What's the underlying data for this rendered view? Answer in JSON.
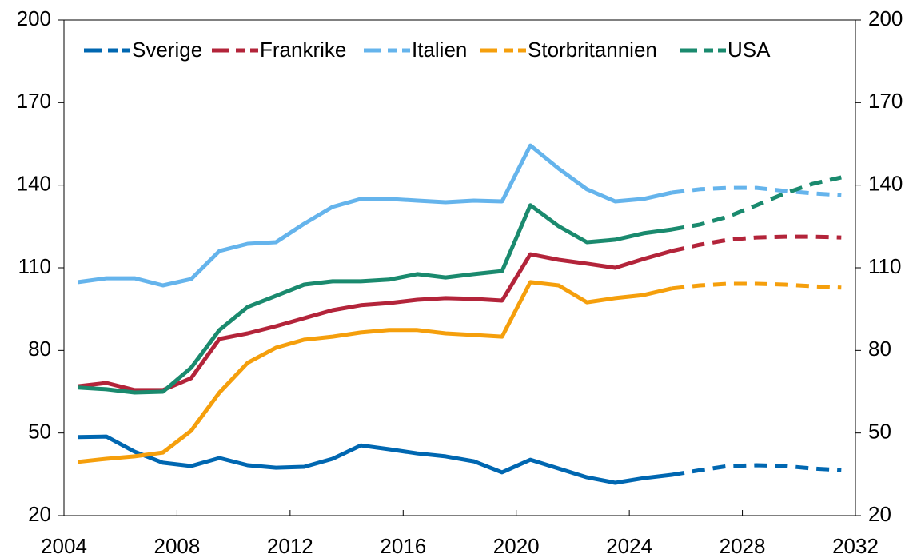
{
  "chart_data": {
    "type": "line",
    "x": [
      2004.5,
      2005.5,
      2006.5,
      2007.5,
      2008.5,
      2009.5,
      2010.5,
      2011.5,
      2012.5,
      2013.5,
      2014.5,
      2015.5,
      2016.5,
      2017.5,
      2018.5,
      2019.5,
      2020.5,
      2021.5,
      2022.5,
      2023.5,
      2024.5,
      2025.5,
      2026.5,
      2027.5,
      2028.5,
      2029.5,
      2030.5,
      2031.5
    ],
    "forecast_start": 2025.5,
    "series": [
      {
        "name": "Sverige",
        "color": "#0067b1",
        "values": [
          48.5,
          48.7,
          43.2,
          39.2,
          38,
          40.9,
          38.3,
          37.4,
          37.7,
          40.6,
          45.5,
          44.1,
          42.6,
          41.5,
          39.7,
          35.7,
          40.3,
          37.1,
          33.9,
          31.9,
          33.6,
          34.8,
          36.5,
          38,
          38.3,
          38,
          37.1,
          36.5
        ]
      },
      {
        "name": "Frankrike",
        "color": "#b3243a",
        "values": [
          67,
          68.2,
          65.6,
          65.6,
          69.9,
          84.2,
          86.2,
          88.8,
          91.7,
          94.6,
          96.4,
          97.2,
          98.4,
          99,
          98.7,
          98.1,
          114.9,
          112.9,
          111.5,
          110,
          113.2,
          116.1,
          118.4,
          120.2,
          121,
          121.3,
          121.3,
          121
        ]
      },
      {
        "name": "Italien",
        "color": "#65b4ec",
        "values": [
          104.8,
          106.2,
          106.2,
          103.6,
          105.9,
          116.1,
          118.7,
          119.3,
          126,
          132.1,
          135,
          135,
          134.4,
          133.8,
          134.4,
          134.1,
          154.4,
          146,
          138.5,
          134.1,
          135,
          137.3,
          138.5,
          139,
          139,
          137.9,
          137,
          136.4
        ]
      },
      {
        "name": "Storbritannien",
        "color": "#f59f0c",
        "values": [
          39.5,
          40.6,
          41.5,
          42.9,
          50.8,
          64.7,
          75.5,
          81,
          83.9,
          85,
          86.5,
          87.4,
          87.4,
          86.2,
          85.6,
          85,
          104.8,
          103.6,
          97.5,
          99,
          100.1,
          102.5,
          103.6,
          104.2,
          104.2,
          103.9,
          103.3,
          102.8
        ]
      },
      {
        "name": "USA",
        "color": "#1a8a6e",
        "values": [
          66.5,
          65.9,
          64.7,
          65,
          73.7,
          87.4,
          95.8,
          99.8,
          103.9,
          105.1,
          105.1,
          105.7,
          107.7,
          106.5,
          107.7,
          108.8,
          132.7,
          125.1,
          119.3,
          120.2,
          122.5,
          123.9,
          125.7,
          128.6,
          132.7,
          137,
          140.5,
          142.8
        ]
      }
    ],
    "xlim": [
      2004,
      2032
    ],
    "xticks": [
      2004,
      2008,
      2012,
      2016,
      2020,
      2024,
      2028,
      2032
    ],
    "ylim": [
      20,
      200
    ],
    "yticks": [
      20,
      50,
      80,
      110,
      140,
      170,
      200
    ],
    "y2lim": [
      20,
      200
    ],
    "y2ticks": [
      20,
      50,
      80,
      110,
      140,
      170,
      200
    ],
    "legend": "top-left",
    "grid": false
  }
}
